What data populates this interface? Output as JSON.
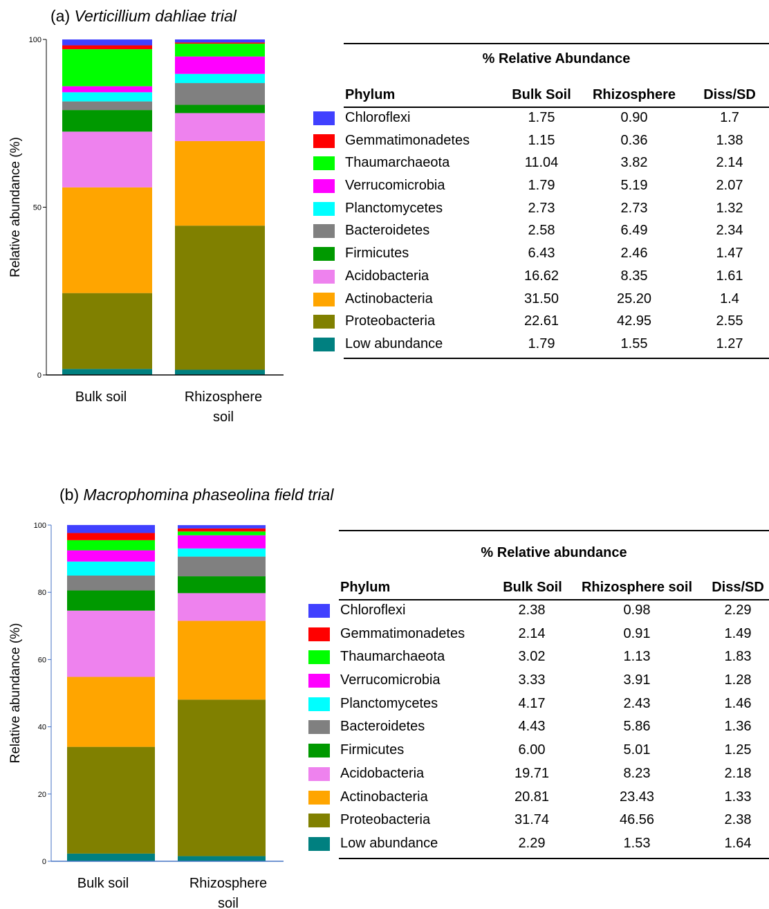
{
  "panels": [
    {
      "title_letter": "(a)",
      "title_name": "Verticillium dahliae trial",
      "table_heading": "% Relative Abundance",
      "columns": [
        "Phylum",
        "Bulk Soil",
        "Rhizosphere",
        "Diss/SD"
      ],
      "rows": [
        {
          "phylum": "Chloroflexi",
          "bulk": "1.75",
          "rhizo": "0.90",
          "diss": "1.7"
        },
        {
          "phylum": "Gemmatimonadetes",
          "bulk": "1.15",
          "rhizo": "0.36",
          "diss": "1.38"
        },
        {
          "phylum": "Thaumarchaeota",
          "bulk": "11.04",
          "rhizo": "3.82",
          "diss": "2.14"
        },
        {
          "phylum": "Verrucomicrobia",
          "bulk": "1.79",
          "rhizo": "5.19",
          "diss": "2.07"
        },
        {
          "phylum": "Planctomycetes",
          "bulk": "2.73",
          "rhizo": "2.73",
          "diss": "1.32"
        },
        {
          "phylum": "Bacteroidetes",
          "bulk": "2.58",
          "rhizo": "6.49",
          "diss": "2.34"
        },
        {
          "phylum": "Firmicutes",
          "bulk": "6.43",
          "rhizo": "2.46",
          "diss": "1.47"
        },
        {
          "phylum": "Acidobacteria",
          "bulk": "16.62",
          "rhizo": "8.35",
          "diss": "1.61"
        },
        {
          "phylum": "Actinobacteria",
          "bulk": "31.50",
          "rhizo": "25.20",
          "diss": "1.4"
        },
        {
          "phylum": "Proteobacteria",
          "bulk": "22.61",
          "rhizo": "42.95",
          "diss": "2.55"
        },
        {
          "phylum": "Low abundance",
          "bulk": "1.79",
          "rhizo": "1.55",
          "diss": "1.27"
        }
      ]
    },
    {
      "title_letter": "(b)",
      "title_name": "Macrophomina phaseolina field trial",
      "table_heading": "% Relative abundance",
      "columns": [
        "Phylum",
        "Bulk Soil",
        "Rhizosphere soil",
        "Diss/SD"
      ],
      "rows": [
        {
          "phylum": "Chloroflexi",
          "bulk": "2.38",
          "rhizo": "0.98",
          "diss": "2.29"
        },
        {
          "phylum": "Gemmatimonadetes",
          "bulk": "2.14",
          "rhizo": "0.91",
          "diss": "1.49"
        },
        {
          "phylum": "Thaumarchaeota",
          "bulk": "3.02",
          "rhizo": "1.13",
          "diss": "1.83"
        },
        {
          "phylum": "Verrucomicrobia",
          "bulk": "3.33",
          "rhizo": "3.91",
          "diss": "1.28"
        },
        {
          "phylum": "Planctomycetes",
          "bulk": "4.17",
          "rhizo": "2.43",
          "diss": "1.46"
        },
        {
          "phylum": "Bacteroidetes",
          "bulk": "4.43",
          "rhizo": "5.86",
          "diss": "1.36"
        },
        {
          "phylum": "Firmicutes",
          "bulk": "6.00",
          "rhizo": "5.01",
          "diss": "1.25"
        },
        {
          "phylum": "Acidobacteria",
          "bulk": "19.71",
          "rhizo": "8.23",
          "diss": "2.18"
        },
        {
          "phylum": "Actinobacteria",
          "bulk": "20.81",
          "rhizo": "23.43",
          "diss": "1.33"
        },
        {
          "phylum": "Proteobacteria",
          "bulk": "31.74",
          "rhizo": "46.56",
          "diss": "2.38"
        },
        {
          "phylum": "Low abundance",
          "bulk": "2.29",
          "rhizo": "1.53",
          "diss": "1.64"
        }
      ]
    }
  ],
  "colors": {
    "Chloroflexi": "#4040ff",
    "Gemmatimonadetes": "#ff0000",
    "Thaumarchaeota": "#00ff00",
    "Verrucomicrobia": "#ff00ff",
    "Planctomycetes": "#00ffff",
    "Bacteroidetes": "#808080",
    "Firmicutes": "#009900",
    "Acidobacteria": "#ee82ee",
    "Actinobacteria": "#ffa500",
    "Proteobacteria": "#808000",
    "Low abundance": "#008080"
  },
  "chart_data": [
    {
      "type": "bar",
      "stacked": true,
      "title": "(a) Verticillium dahliae trial",
      "categories": [
        "Bulk soil",
        "Rhizosphere soil"
      ],
      "ylabel": "Relative abundance (%)",
      "xlabel": "",
      "ylim": [
        0,
        100
      ],
      "yticks": [
        0,
        50,
        100
      ],
      "stack_order": "bottom-to-top",
      "series": [
        {
          "name": "Low abundance",
          "values": [
            1.79,
            1.55
          ]
        },
        {
          "name": "Proteobacteria",
          "values": [
            22.61,
            42.95
          ]
        },
        {
          "name": "Actinobacteria",
          "values": [
            31.5,
            25.2
          ]
        },
        {
          "name": "Acidobacteria",
          "values": [
            16.62,
            8.35
          ]
        },
        {
          "name": "Firmicutes",
          "values": [
            6.43,
            2.46
          ]
        },
        {
          "name": "Bacteroidetes",
          "values": [
            2.58,
            6.49
          ]
        },
        {
          "name": "Planctomycetes",
          "values": [
            2.73,
            2.73
          ]
        },
        {
          "name": "Verrucomicrobia",
          "values": [
            1.79,
            5.19
          ]
        },
        {
          "name": "Thaumarchaeota",
          "values": [
            11.04,
            3.82
          ]
        },
        {
          "name": "Gemmatimonadetes",
          "values": [
            1.15,
            0.36
          ]
        },
        {
          "name": "Chloroflexi",
          "values": [
            1.75,
            0.9
          ]
        }
      ]
    },
    {
      "type": "bar",
      "stacked": true,
      "title": "(b) Macrophomina phaseolina field trial",
      "categories": [
        "Bulk soil",
        "Rhizosphere soil"
      ],
      "ylabel": "Relative abundance (%)",
      "xlabel": "",
      "ylim": [
        0,
        100
      ],
      "yticks": [
        0,
        20,
        40,
        60,
        80,
        100
      ],
      "stack_order": "bottom-to-top",
      "series": [
        {
          "name": "Low abundance",
          "values": [
            2.29,
            1.53
          ]
        },
        {
          "name": "Proteobacteria",
          "values": [
            31.74,
            46.56
          ]
        },
        {
          "name": "Actinobacteria",
          "values": [
            20.81,
            23.43
          ]
        },
        {
          "name": "Acidobacteria",
          "values": [
            19.71,
            8.23
          ]
        },
        {
          "name": "Firmicutes",
          "values": [
            6.0,
            5.01
          ]
        },
        {
          "name": "Bacteroidetes",
          "values": [
            4.43,
            5.86
          ]
        },
        {
          "name": "Planctomycetes",
          "values": [
            4.17,
            2.43
          ]
        },
        {
          "name": "Verrucomicrobia",
          "values": [
            3.33,
            3.91
          ]
        },
        {
          "name": "Thaumarchaeota",
          "values": [
            3.02,
            1.13
          ]
        },
        {
          "name": "Gemmatimonadetes",
          "values": [
            2.14,
            0.91
          ]
        },
        {
          "name": "Chloroflexi",
          "values": [
            2.38,
            0.98
          ]
        }
      ]
    }
  ]
}
